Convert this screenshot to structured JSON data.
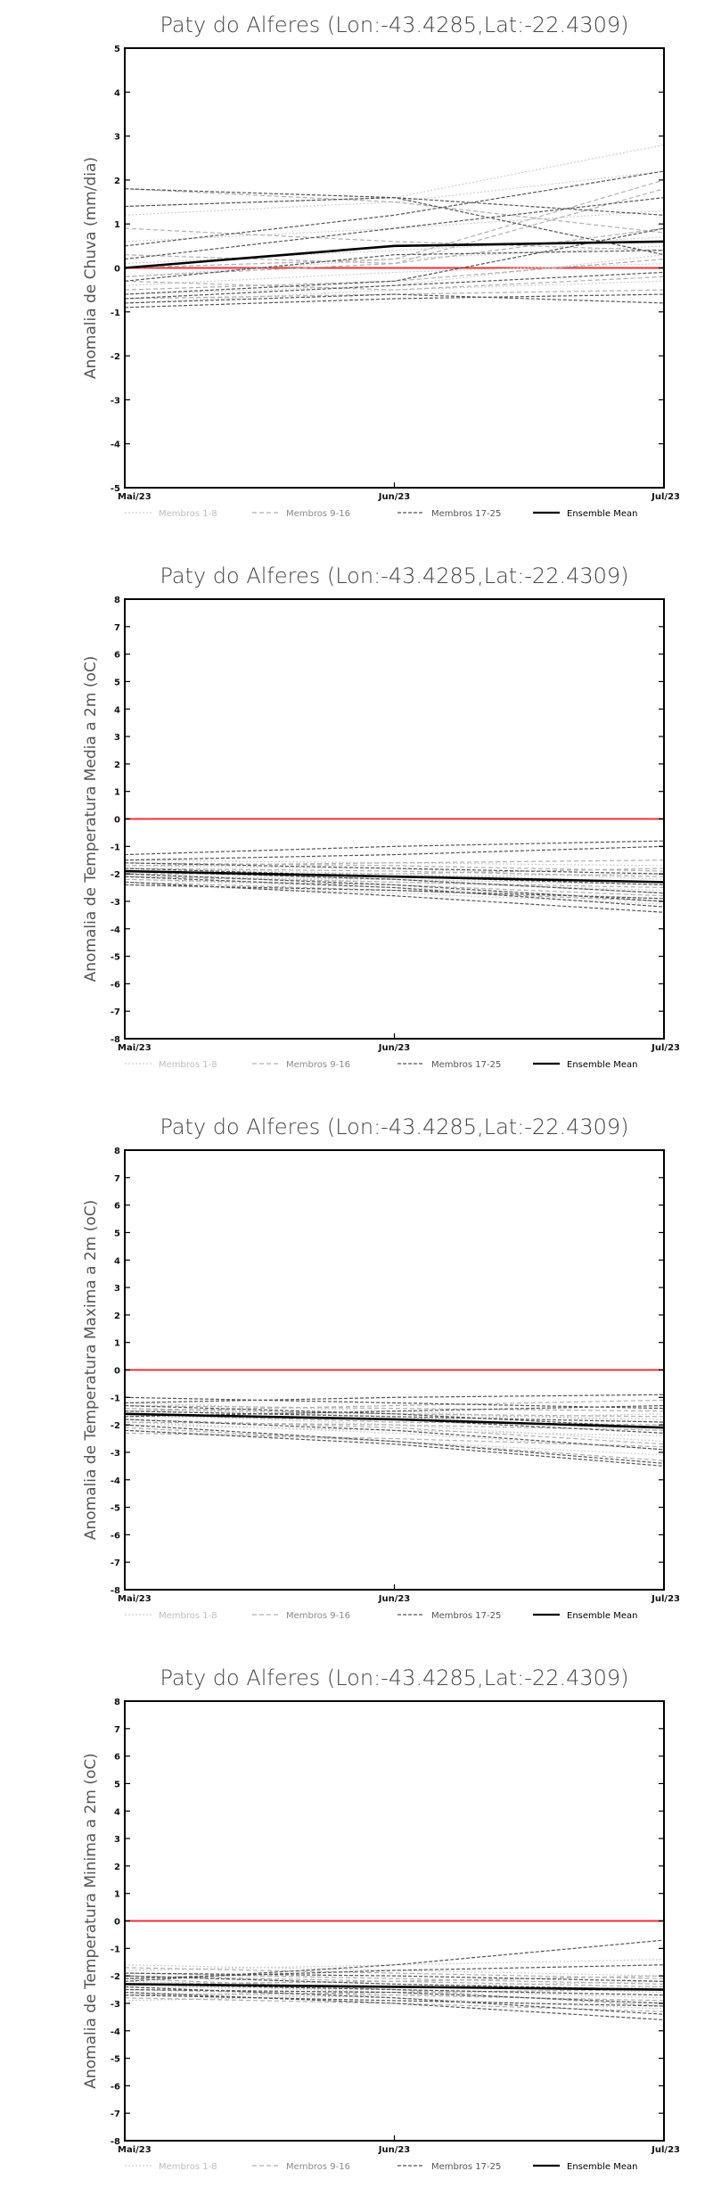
{
  "chart_data": [
    {
      "type": "line",
      "title": "Paty do Alferes (Lon:-43.4285,Lat:-22.4309)",
      "ylabel": "Anomalia de Chuva (mm/dia)",
      "x": [
        "Mai/23",
        "Jun/23",
        "Jul/23"
      ],
      "ylim": [
        -5,
        5
      ],
      "yticks": [
        -5,
        -4,
        -3,
        -2,
        -1,
        0,
        1,
        2,
        3,
        4,
        5
      ],
      "grid": false,
      "legend": [
        "Membros 1-8",
        "Membros 9-16",
        "Membros 17-25",
        "Ensemble Mean"
      ],
      "legend_placement": "bottom",
      "reference_color": "#e8333a",
      "series": [
        {
          "group": 1,
          "values": [
            1.4,
            1.6,
            2.8
          ]
        },
        {
          "group": 1,
          "values": [
            1.2,
            1.5,
            2.2
          ]
        },
        {
          "group": 1,
          "values": [
            0.6,
            0.9,
            1.3
          ]
        },
        {
          "group": 1,
          "values": [
            0.1,
            0.4,
            0.7
          ]
        },
        {
          "group": 1,
          "values": [
            -0.2,
            0.2,
            0.5
          ]
        },
        {
          "group": 1,
          "values": [
            -0.4,
            -0.1,
            0.1
          ]
        },
        {
          "group": 1,
          "values": [
            -0.6,
            -0.4,
            0.3
          ]
        },
        {
          "group": 1,
          "values": [
            -0.8,
            -0.5,
            -0.3
          ]
        },
        {
          "group": 2,
          "values": [
            1.8,
            1.5,
            0.8
          ]
        },
        {
          "group": 2,
          "values": [
            0.9,
            0.6,
            0.4
          ]
        },
        {
          "group": 2,
          "values": [
            0.3,
            0.1,
            0.9
          ]
        },
        {
          "group": 2,
          "values": [
            -0.3,
            -0.5,
            -0.2
          ]
        },
        {
          "group": 2,
          "values": [
            -0.5,
            -0.3,
            0.2
          ]
        },
        {
          "group": 2,
          "values": [
            -0.7,
            -0.6,
            -0.5
          ]
        },
        {
          "group": 2,
          "values": [
            -0.2,
            0.1,
            1.8
          ]
        },
        {
          "group": 2,
          "values": [
            0.0,
            0.2,
            2.0
          ]
        },
        {
          "group": 3,
          "values": [
            1.8,
            1.6,
            0.3
          ]
        },
        {
          "group": 3,
          "values": [
            1.4,
            1.6,
            1.2
          ]
        },
        {
          "group": 3,
          "values": [
            0.5,
            1.2,
            2.2
          ]
        },
        {
          "group": 3,
          "values": [
            0.2,
            0.9,
            1.6
          ]
        },
        {
          "group": 3,
          "values": [
            -0.3,
            0.3,
            0.4
          ]
        },
        {
          "group": 3,
          "values": [
            -0.6,
            -0.3,
            0.9
          ]
        },
        {
          "group": 3,
          "values": [
            -0.7,
            -0.4,
            -0.1
          ]
        },
        {
          "group": 3,
          "values": [
            -0.8,
            -0.6,
            -0.8
          ]
        },
        {
          "group": 3,
          "values": [
            -0.9,
            -0.7,
            -0.6
          ]
        },
        {
          "group": 4,
          "values": [
            0.0,
            0.5,
            0.6
          ]
        }
      ]
    },
    {
      "type": "line",
      "title": "Paty do Alferes (Lon:-43.4285,Lat:-22.4309)",
      "ylabel": "Anomalia de Temperatura Media a 2m (oC)",
      "x": [
        "Mai/23",
        "Jun/23",
        "Jul/23"
      ],
      "ylim": [
        -8,
        8
      ],
      "yticks": [
        -8,
        -7,
        -6,
        -5,
        -4,
        -3,
        -2,
        -1,
        0,
        1,
        2,
        3,
        4,
        5,
        6,
        7,
        8
      ],
      "grid": false,
      "legend": [
        "Membros 1-8",
        "Membros 9-16",
        "Membros 17-25",
        "Ensemble Mean"
      ],
      "legend_placement": "bottom",
      "reference_color": "#e8333a",
      "series": [
        {
          "group": 1,
          "values": [
            -1.5,
            -1.6,
            -1.7
          ]
        },
        {
          "group": 1,
          "values": [
            -1.8,
            -2.0,
            -2.3
          ]
        },
        {
          "group": 1,
          "values": [
            -2.0,
            -2.3,
            -2.6
          ]
        },
        {
          "group": 1,
          "values": [
            -2.2,
            -2.5,
            -2.9
          ]
        },
        {
          "group": 1,
          "values": [
            -2.4,
            -2.7,
            -3.1
          ]
        },
        {
          "group": 1,
          "values": [
            -1.9,
            -2.1,
            -2.0
          ]
        },
        {
          "group": 1,
          "values": [
            -2.1,
            -2.2,
            -2.4
          ]
        },
        {
          "group": 1,
          "values": [
            -1.7,
            -1.8,
            -2.2
          ]
        },
        {
          "group": 2,
          "values": [
            -1.6,
            -1.7,
            -1.9
          ]
        },
        {
          "group": 2,
          "values": [
            -1.9,
            -2.2,
            -2.7
          ]
        },
        {
          "group": 2,
          "values": [
            -2.3,
            -2.6,
            -3.0
          ]
        },
        {
          "group": 2,
          "values": [
            -2.0,
            -2.0,
            -1.8
          ]
        },
        {
          "group": 2,
          "values": [
            -1.8,
            -1.9,
            -2.1
          ]
        },
        {
          "group": 2,
          "values": [
            -2.2,
            -2.4,
            -2.8
          ]
        },
        {
          "group": 2,
          "values": [
            -2.1,
            -2.3,
            -2.5
          ]
        },
        {
          "group": 2,
          "values": [
            -1.7,
            -1.6,
            -1.5
          ]
        },
        {
          "group": 3,
          "values": [
            -1.3,
            -1.0,
            -0.8
          ]
        },
        {
          "group": 3,
          "values": [
            -1.5,
            -1.3,
            -1.0
          ]
        },
        {
          "group": 3,
          "values": [
            -1.8,
            -2.1,
            -2.4
          ]
        },
        {
          "group": 3,
          "values": [
            -2.0,
            -2.4,
            -3.0
          ]
        },
        {
          "group": 3,
          "values": [
            -2.3,
            -2.8,
            -3.4
          ]
        },
        {
          "group": 3,
          "values": [
            -1.9,
            -2.2,
            -2.7
          ]
        },
        {
          "group": 3,
          "values": [
            -2.1,
            -2.5,
            -3.2
          ]
        },
        {
          "group": 3,
          "values": [
            -1.6,
            -1.8,
            -2.0
          ]
        },
        {
          "group": 3,
          "values": [
            -2.4,
            -2.6,
            -2.9
          ]
        },
        {
          "group": 4,
          "values": [
            -1.9,
            -2.1,
            -2.3
          ]
        }
      ]
    },
    {
      "type": "line",
      "title": "Paty do Alferes (Lon:-43.4285,Lat:-22.4309)",
      "ylabel": "Anomalia de Temperatura Maxima a 2m (oC)",
      "x": [
        "Mai/23",
        "Jun/23",
        "Jul/23"
      ],
      "ylim": [
        -8,
        8
      ],
      "yticks": [
        -8,
        -7,
        -6,
        -5,
        -4,
        -3,
        -2,
        -1,
        0,
        1,
        2,
        3,
        4,
        5,
        6,
        7,
        8
      ],
      "grid": false,
      "legend": [
        "Membros 1-8",
        "Membros 9-16",
        "Membros 17-25",
        "Ensemble Mean"
      ],
      "legend_placement": "bottom",
      "reference_color": "#e8333a",
      "series": [
        {
          "group": 1,
          "values": [
            -1.2,
            -1.5,
            -1.9
          ]
        },
        {
          "group": 1,
          "values": [
            -1.6,
            -2.0,
            -2.6
          ]
        },
        {
          "group": 1,
          "values": [
            -1.9,
            -2.3,
            -2.9
          ]
        },
        {
          "group": 1,
          "values": [
            -2.2,
            -2.6,
            -3.1
          ]
        },
        {
          "group": 1,
          "values": [
            -1.4,
            -1.7,
            -2.2
          ]
        },
        {
          "group": 1,
          "values": [
            -1.7,
            -1.8,
            -1.6
          ]
        },
        {
          "group": 1,
          "values": [
            -2.0,
            -2.2,
            -2.4
          ]
        },
        {
          "group": 1,
          "values": [
            -1.5,
            -1.6,
            -1.8
          ]
        },
        {
          "group": 2,
          "values": [
            -1.3,
            -1.4,
            -1.5
          ]
        },
        {
          "group": 2,
          "values": [
            -1.8,
            -2.1,
            -2.7
          ]
        },
        {
          "group": 2,
          "values": [
            -2.1,
            -2.6,
            -3.3
          ]
        },
        {
          "group": 2,
          "values": [
            -1.6,
            -1.9,
            -2.0
          ]
        },
        {
          "group": 2,
          "values": [
            -1.4,
            -1.6,
            -1.7
          ]
        },
        {
          "group": 2,
          "values": [
            -1.9,
            -2.0,
            -2.2
          ]
        },
        {
          "group": 2,
          "values": [
            -2.3,
            -2.5,
            -2.8
          ]
        },
        {
          "group": 2,
          "values": [
            -1.5,
            -1.3,
            -1.1
          ]
        },
        {
          "group": 3,
          "values": [
            -1.0,
            -1.2,
            -1.4
          ]
        },
        {
          "group": 3,
          "values": [
            -1.2,
            -1.0,
            -0.9
          ]
        },
        {
          "group": 3,
          "values": [
            -1.5,
            -1.7,
            -1.9
          ]
        },
        {
          "group": 3,
          "values": [
            -1.8,
            -2.2,
            -2.9
          ]
        },
        {
          "group": 3,
          "values": [
            -2.0,
            -2.6,
            -3.4
          ]
        },
        {
          "group": 3,
          "values": [
            -2.2,
            -2.7,
            -3.5
          ]
        },
        {
          "group": 3,
          "values": [
            -1.7,
            -1.5,
            -1.3
          ]
        },
        {
          "group": 3,
          "values": [
            -1.3,
            -1.6,
            -2.1
          ]
        },
        {
          "group": 3,
          "values": [
            -1.6,
            -1.8,
            -2.3
          ]
        },
        {
          "group": 4,
          "values": [
            -1.6,
            -1.8,
            -2.1
          ]
        }
      ]
    },
    {
      "type": "line",
      "title": "Paty do Alferes (Lon:-43.4285,Lat:-22.4309)",
      "ylabel": "Anomalia de Temperatura Minima a 2m (oC)",
      "x": [
        "Mai/23",
        "Jun/23",
        "Jul/23"
      ],
      "ylim": [
        -8,
        8
      ],
      "yticks": [
        -8,
        -7,
        -6,
        -5,
        -4,
        -3,
        -2,
        -1,
        0,
        1,
        2,
        3,
        4,
        5,
        6,
        7,
        8
      ],
      "grid": false,
      "legend": [
        "Membros 1-8",
        "Membros 9-16",
        "Membros 17-25",
        "Ensemble Mean"
      ],
      "legend_placement": "bottom",
      "reference_color": "#e8333a",
      "series": [
        {
          "group": 1,
          "values": [
            -1.6,
            -1.8,
            -2.0
          ]
        },
        {
          "group": 1,
          "values": [
            -2.0,
            -2.3,
            -2.6
          ]
        },
        {
          "group": 1,
          "values": [
            -2.3,
            -2.6,
            -3.0
          ]
        },
        {
          "group": 1,
          "values": [
            -2.6,
            -2.8,
            -3.2
          ]
        },
        {
          "group": 1,
          "values": [
            -2.9,
            -2.7,
            -2.4
          ]
        },
        {
          "group": 1,
          "values": [
            -1.8,
            -1.6,
            -1.4
          ]
        },
        {
          "group": 1,
          "values": [
            -2.2,
            -2.4,
            -2.2
          ]
        },
        {
          "group": 1,
          "values": [
            -2.4,
            -2.5,
            -2.8
          ]
        },
        {
          "group": 2,
          "values": [
            -1.9,
            -2.1,
            -2.3
          ]
        },
        {
          "group": 2,
          "values": [
            -2.1,
            -2.5,
            -3.1
          ]
        },
        {
          "group": 2,
          "values": [
            -2.5,
            -2.7,
            -2.9
          ]
        },
        {
          "group": 2,
          "values": [
            -2.7,
            -2.6,
            -2.5
          ]
        },
        {
          "group": 2,
          "values": [
            -1.7,
            -1.9,
            -2.1
          ]
        },
        {
          "group": 2,
          "values": [
            -2.3,
            -2.2,
            -2.0
          ]
        },
        {
          "group": 2,
          "values": [
            -2.8,
            -3.0,
            -3.3
          ]
        },
        {
          "group": 2,
          "values": [
            -2.0,
            -2.2,
            -2.4
          ]
        },
        {
          "group": 3,
          "values": [
            -2.2,
            -1.6,
            -0.7
          ]
        },
        {
          "group": 3,
          "values": [
            -2.1,
            -1.8,
            -1.6
          ]
        },
        {
          "group": 3,
          "values": [
            -2.4,
            -2.8,
            -3.4
          ]
        },
        {
          "group": 3,
          "values": [
            -2.6,
            -3.0,
            -3.6
          ]
        },
        {
          "group": 3,
          "values": [
            -2.3,
            -2.5,
            -2.7
          ]
        },
        {
          "group": 3,
          "values": [
            -1.9,
            -2.0,
            -2.2
          ]
        },
        {
          "group": 3,
          "values": [
            -2.5,
            -2.6,
            -3.0
          ]
        },
        {
          "group": 3,
          "values": [
            -2.0,
            -2.3,
            -2.5
          ]
        },
        {
          "group": 3,
          "values": [
            -2.7,
            -2.9,
            -3.1
          ]
        },
        {
          "group": 4,
          "values": [
            -2.3,
            -2.4,
            -2.5
          ]
        }
      ]
    }
  ]
}
